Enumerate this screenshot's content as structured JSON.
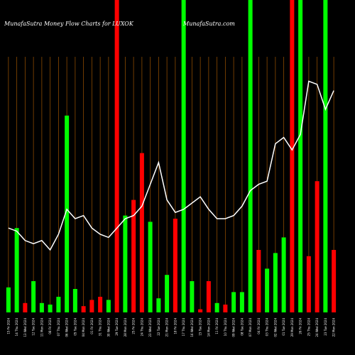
{
  "chart_data": {
    "type": "bar",
    "title": "MunafaSutra  Money Flow  Charts for LUXOK",
    "site": "MunafaSutra.com",
    "grid": true,
    "colors": {
      "background": "#000000",
      "up": "#00ff00",
      "down": "#ff0000",
      "line": "#ffffff",
      "grid": "#8b4a00"
    },
    "ylim": [
      0,
      100
    ],
    "bars": [
      {
        "category": "15 Fri 2024",
        "value": 8,
        "color": "up"
      },
      {
        "category": "14 Thu 2024",
        "value": 27,
        "color": "up"
      },
      {
        "category": "13 Wed 2024",
        "value": 3,
        "color": "down"
      },
      {
        "category": "12 Tue 2024",
        "value": 10,
        "color": "up"
      },
      {
        "category": "11 Mon 2024",
        "value": 3,
        "color": "up"
      },
      {
        "category": "08 Fri 2024",
        "value": 2.5,
        "color": "up"
      },
      {
        "category": "07 Thu 2024",
        "value": 5,
        "color": "up"
      },
      {
        "category": "06 Wed 2024",
        "value": 63,
        "color": "up"
      },
      {
        "category": "05 Tue 2024",
        "value": 7.5,
        "color": "up"
      },
      {
        "category": "04 Mon 2024",
        "value": 2,
        "color": "down"
      },
      {
        "category": "01 Fri 2024",
        "value": 4,
        "color": "down"
      },
      {
        "category": "31 Thu 2024",
        "value": 5,
        "color": "down"
      },
      {
        "category": "30 Wed 2024",
        "value": 4,
        "color": "up"
      },
      {
        "category": "29 Tue 2024",
        "value": 100,
        "color": "down"
      },
      {
        "category": "28 Mon 2024",
        "value": 31,
        "color": "up"
      },
      {
        "category": "25 Fri 2024",
        "value": 36,
        "color": "down"
      },
      {
        "category": "24 Thu 2024",
        "value": 51,
        "color": "down"
      },
      {
        "category": "23 Wed 2024",
        "value": 29,
        "color": "up"
      },
      {
        "category": "22 Tue 2024",
        "value": 4.5,
        "color": "up"
      },
      {
        "category": "21 Mon 2024",
        "value": 12,
        "color": "up"
      },
      {
        "category": "18 Fri 2024",
        "value": 30,
        "color": "down"
      },
      {
        "category": "17 Thu 2024",
        "value": 100,
        "color": "up"
      },
      {
        "category": "16 Wed 2024",
        "value": 10,
        "color": "up"
      },
      {
        "category": "15 Tue 2024",
        "value": 1,
        "color": "down"
      },
      {
        "category": "14 Mon 2024",
        "value": 10,
        "color": "down"
      },
      {
        "category": "11 Fri 2024",
        "value": 3,
        "color": "up"
      },
      {
        "category": "10 Thu 2024",
        "value": 2.5,
        "color": "down"
      },
      {
        "category": "09 Wed 2024",
        "value": 6.5,
        "color": "up"
      },
      {
        "category": "08 Tue 2024",
        "value": 6.5,
        "color": "up"
      },
      {
        "category": "07 Mon 2024",
        "value": 100,
        "color": "up"
      },
      {
        "category": "04 Fri 2024",
        "value": 20,
        "color": "down"
      },
      {
        "category": "03 Thu 2024",
        "value": 14,
        "color": "up"
      },
      {
        "category": "02 Wed 2024",
        "value": 19,
        "color": "up"
      },
      {
        "category": "01 Tue 2024",
        "value": 24,
        "color": "up"
      },
      {
        "category": "29 Mon 2024",
        "value": 100,
        "color": "down"
      },
      {
        "category": "26 Fri 2024",
        "value": 100,
        "color": "up"
      },
      {
        "category": "25 Thu 2024",
        "value": 18,
        "color": "down"
      },
      {
        "category": "24 Wed 2024",
        "value": 42,
        "color": "down"
      },
      {
        "category": "23 Tue 2024",
        "value": 100,
        "color": "up"
      },
      {
        "category": "22 Mon 2024",
        "value": 20,
        "color": "down"
      }
    ],
    "line": [
      27,
      26,
      23,
      22,
      23,
      20,
      25,
      33,
      30,
      31,
      27,
      25,
      24,
      27,
      30,
      31,
      34,
      41,
      48,
      36,
      32,
      33,
      35,
      37,
      33,
      30,
      30,
      31,
      34,
      39,
      41,
      42,
      54,
      56,
      52,
      57,
      74,
      73,
      65,
      71
    ]
  }
}
